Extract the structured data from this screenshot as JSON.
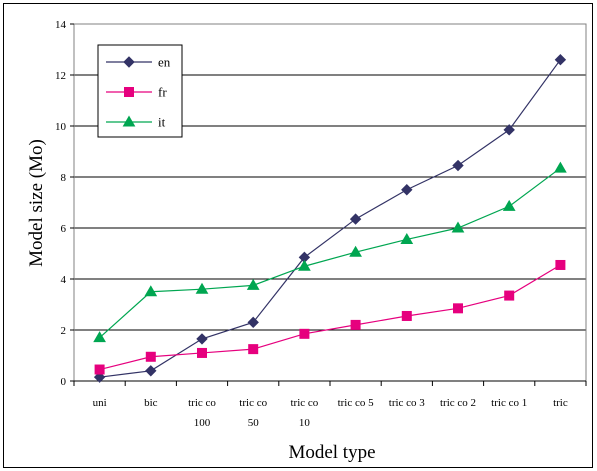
{
  "chart_data": {
    "type": "line",
    "title": "",
    "xlabel": "Model type",
    "ylabel": "Model size (Mo)",
    "ylim": [
      0,
      14
    ],
    "yticks": [
      0,
      2,
      4,
      6,
      8,
      10,
      12,
      14
    ],
    "grid": "horizontal",
    "legend_position": "top-left",
    "categories": [
      [
        "uni"
      ],
      [
        "bic"
      ],
      [
        "tric co",
        "100"
      ],
      [
        "tric co",
        "50"
      ],
      [
        "tric co",
        "10"
      ],
      [
        "tric co 5"
      ],
      [
        "tric co 3"
      ],
      [
        "tric co 2"
      ],
      [
        "tric co 1"
      ],
      [
        "tric"
      ]
    ],
    "series": [
      {
        "name": "en",
        "color": "#333366",
        "marker": "diamond",
        "values": [
          0.15,
          0.4,
          1.65,
          2.3,
          4.85,
          6.35,
          7.5,
          8.45,
          9.85,
          12.6
        ]
      },
      {
        "name": "fr",
        "color": "#e6007e",
        "marker": "square",
        "values": [
          0.45,
          0.95,
          1.1,
          1.25,
          1.85,
          2.2,
          2.55,
          2.85,
          3.35,
          4.55
        ]
      },
      {
        "name": "it",
        "color": "#00a651",
        "marker": "triangle",
        "values": [
          1.7,
          3.5,
          3.6,
          3.75,
          4.5,
          5.05,
          5.55,
          6.0,
          6.85,
          8.35
        ]
      }
    ]
  }
}
